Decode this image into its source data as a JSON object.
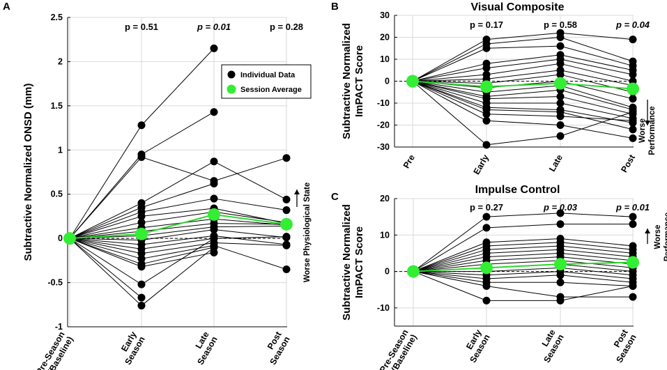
{
  "chart_data": [
    {
      "id": "A",
      "panel_label": "A",
      "type": "line",
      "title": "",
      "ylabel": "Subtractive Normalized ONSD (mm)",
      "categories": [
        [
          "Pre-Season",
          "(Baseline)"
        ],
        [
          "Early",
          "Season"
        ],
        [
          "Late",
          "Season"
        ],
        [
          "Post",
          "Season"
        ]
      ],
      "ylim": [
        -1,
        2.5
      ],
      "yticks": [
        -1,
        -0.5,
        0,
        0.5,
        1,
        1.5,
        2,
        2.5
      ],
      "ytick_labels": [
        "-1",
        "-0.5",
        "0",
        "0.5",
        "1",
        "1.5",
        "2",
        "2.5"
      ],
      "grid": true,
      "p_values": [
        {
          "at": 1,
          "text": "p = 0.51",
          "significant": false
        },
        {
          "at": 2,
          "text": "p = 0.01",
          "significant": true
        },
        {
          "at": 3,
          "text": "p = 0.28",
          "significant": false
        }
      ],
      "annotation": {
        "text": "Worse Physiological State",
        "direction": "up"
      },
      "legend": {
        "position": "top-right",
        "entries": [
          "Individual Data",
          "Session Average"
        ]
      },
      "series": [
        {
          "values": [
            0,
            1.28,
            2.15,
            null
          ]
        },
        {
          "values": [
            0,
            0.95,
            1.43,
            null
          ]
        },
        {
          "values": [
            0,
            0.92,
            0.65,
            0.91
          ]
        },
        {
          "values": [
            0,
            0.4,
            0.87,
            0.44
          ]
        },
        {
          "values": [
            0,
            0.35,
            0.62,
            null
          ]
        },
        {
          "values": [
            0,
            0.3,
            0.45,
            0.32
          ]
        },
        {
          "values": [
            0,
            0.25,
            0.34,
            0.17
          ]
        },
        {
          "values": [
            0,
            0.18,
            0.3,
            0.18
          ]
        },
        {
          "values": [
            0,
            0.12,
            0.22,
            0.15
          ]
        },
        {
          "values": [
            0,
            0.08,
            0.17,
            0.16
          ]
        },
        {
          "values": [
            0,
            0.03,
            0.13,
            0.14
          ]
        },
        {
          "values": [
            0,
            -0.02,
            0.1,
            0.01
          ]
        },
        {
          "values": [
            0,
            -0.07,
            0.03,
            -0.07
          ]
        },
        {
          "values": [
            0,
            -0.12,
            0.0,
            0.02
          ]
        },
        {
          "values": [
            0,
            -0.17,
            -0.05,
            -0.08
          ]
        },
        {
          "values": [
            0,
            -0.23,
            -0.08,
            -0.35
          ]
        },
        {
          "values": [
            0,
            -0.29,
            -0.1,
            null
          ]
        },
        {
          "values": [
            0,
            -0.32,
            -0.16,
            null
          ]
        },
        {
          "values": [
            0,
            -0.52,
            0.0,
            null
          ]
        },
        {
          "values": [
            0,
            -0.67,
            null,
            null
          ]
        },
        {
          "values": [
            0,
            -0.76,
            -0.1,
            null
          ]
        }
      ],
      "average": [
        0,
        0.05,
        0.27,
        0.16
      ]
    },
    {
      "id": "B",
      "panel_label": "B",
      "type": "line",
      "title": "Visual Composite",
      "ylabel": [
        "Subtractive Normalized",
        "ImPACT Score"
      ],
      "categories": [
        [
          "Pre"
        ],
        [
          "Early"
        ],
        [
          "Late"
        ],
        [
          "Post"
        ]
      ],
      "ylim": [
        -30,
        30
      ],
      "yticks": [
        -30,
        -20,
        -10,
        0,
        10,
        20,
        30
      ],
      "ytick_labels": [
        "-30",
        "-20",
        "-10",
        "0",
        "10",
        "20",
        "30"
      ],
      "grid": true,
      "p_values": [
        {
          "at": 1,
          "text": "p = 0.17",
          "significant": false
        },
        {
          "at": 2,
          "text": "p = 0.58",
          "significant": false
        },
        {
          "at": 3,
          "text": "p = 0.04",
          "significant": true
        }
      ],
      "annotation": {
        "text": [
          "Worse",
          "Performance"
        ],
        "direction": "down"
      },
      "series": [
        {
          "values": [
            0,
            19,
            22,
            19
          ]
        },
        {
          "values": [
            0,
            17,
            20,
            9
          ]
        },
        {
          "values": [
            0,
            15,
            16,
            7
          ]
        },
        {
          "values": [
            0,
            8,
            12,
            5
          ]
        },
        {
          "values": [
            0,
            6,
            10,
            3
          ]
        },
        {
          "values": [
            0,
            3,
            8,
            0
          ]
        },
        {
          "values": [
            0,
            1,
            5,
            -2
          ]
        },
        {
          "values": [
            0,
            -1,
            3,
            -5
          ]
        },
        {
          "values": [
            0,
            -3,
            0,
            -8
          ]
        },
        {
          "values": [
            0,
            -5,
            -2,
            -12
          ]
        },
        {
          "values": [
            0,
            -7,
            -4,
            -13
          ]
        },
        {
          "values": [
            0,
            -8,
            -7,
            -15
          ]
        },
        {
          "values": [
            0,
            -10,
            -10,
            -17
          ]
        },
        {
          "values": [
            0,
            -12,
            -13,
            -19
          ]
        },
        {
          "values": [
            0,
            -13,
            -14,
            -22
          ]
        },
        {
          "values": [
            0,
            -15,
            -16,
            -18
          ]
        },
        {
          "values": [
            0,
            -18,
            -20,
            -26
          ]
        },
        {
          "values": [
            0,
            -29,
            -25,
            -14
          ]
        }
      ],
      "average": [
        0,
        -2.5,
        -1,
        -3.5
      ]
    },
    {
      "id": "C",
      "panel_label": "C",
      "type": "line",
      "title": "Impulse Control",
      "ylabel": [
        "Subtractive Normalized",
        "ImPACT Score"
      ],
      "categories": [
        [
          "Pre-Season",
          "(Baseline)"
        ],
        [
          "Early",
          "Season"
        ],
        [
          "Late",
          "Season"
        ],
        [
          "Post",
          "Season"
        ]
      ],
      "ylim": [
        -15,
        20
      ],
      "yticks": [
        -10,
        0,
        10,
        20
      ],
      "ytick_labels": [
        "-10",
        "0",
        "10",
        "20"
      ],
      "grid": true,
      "p_values": [
        {
          "at": 1,
          "text": "p = 0.27",
          "significant": false
        },
        {
          "at": 2,
          "text": "p = 0.03",
          "significant": true
        },
        {
          "at": 3,
          "text": "p = 0.01",
          "significant": true
        }
      ],
      "annotation": {
        "text": [
          "Worse",
          "Performance"
        ],
        "direction": "up"
      },
      "series": [
        {
          "values": [
            0,
            15,
            16,
            15
          ]
        },
        {
          "values": [
            0,
            12,
            13,
            13
          ]
        },
        {
          "values": [
            0,
            8,
            9,
            7
          ]
        },
        {
          "values": [
            0,
            7,
            8,
            6
          ]
        },
        {
          "values": [
            0,
            6,
            7,
            5
          ]
        },
        {
          "values": [
            0,
            5,
            6,
            4
          ]
        },
        {
          "values": [
            0,
            4,
            5,
            3
          ]
        },
        {
          "values": [
            0,
            3,
            4,
            2
          ]
        },
        {
          "values": [
            0,
            2,
            3,
            1
          ]
        },
        {
          "values": [
            0,
            1,
            2,
            0
          ]
        },
        {
          "values": [
            0,
            0,
            1,
            -1
          ]
        },
        {
          "values": [
            0,
            -1,
            0,
            -2
          ]
        },
        {
          "values": [
            0,
            -2,
            -1,
            -3
          ]
        },
        {
          "values": [
            0,
            -3,
            -3,
            -4
          ]
        },
        {
          "values": [
            0,
            -4,
            -7,
            -7
          ]
        },
        {
          "values": [
            0,
            -8,
            -8,
            -4
          ]
        }
      ],
      "average": [
        0,
        1,
        2,
        2.5
      ]
    }
  ]
}
